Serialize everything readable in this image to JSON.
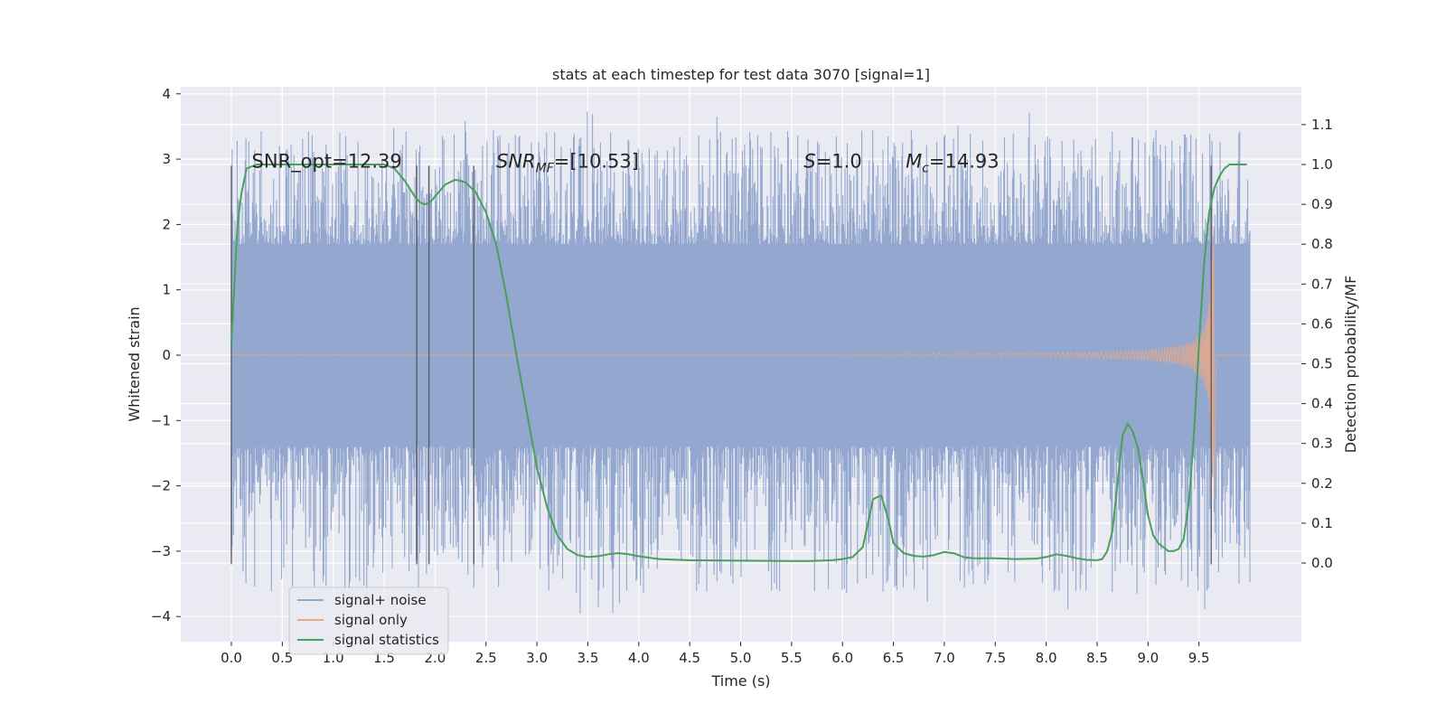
{
  "chart_data": {
    "type": "line",
    "title": "stats at each timestep for test data 3070 [signal=1]",
    "xlabel": "Time (s)",
    "ylabel": "Whitened strain",
    "ylabel_right": "Detection probability/MF",
    "xlim": [
      -0.5,
      10.5
    ],
    "ylim": [
      -4.4,
      4.1
    ],
    "ylim_right": [
      -0.2,
      1.2
    ],
    "x_ticks": [
      0.0,
      0.5,
      1.0,
      1.5,
      2.0,
      2.5,
      3.0,
      3.5,
      4.0,
      4.5,
      5.0,
      5.5,
      6.0,
      6.5,
      7.0,
      7.5,
      8.0,
      8.5,
      9.0,
      9.5
    ],
    "y_ticks": [
      -4,
      -3,
      -2,
      -1,
      0,
      1,
      2,
      3,
      4
    ],
    "y_ticks_right": [
      0.0,
      0.1,
      0.2,
      0.3,
      0.4,
      0.5,
      0.6,
      0.7,
      0.8,
      0.9,
      1.0,
      1.1
    ],
    "grid": true,
    "legend_position": "lower-left",
    "series": [
      {
        "name": "signal+ noise",
        "color": "#94a8cf",
        "description_kind": "noise",
        "t_range": [
          0.0,
          10.0
        ],
        "envelope": {
          "core_low": -1.4,
          "core_high": 1.7,
          "spike_low": -4.05,
          "spike_high": 3.75
        }
      },
      {
        "name": "signal only",
        "color": "#e1a88c",
        "description_kind": "chirp",
        "t_range": [
          0.0,
          9.65
        ],
        "merger_time": 9.65,
        "peak_amplitude": 2.0
      },
      {
        "name": "signal statistics",
        "color": "#4a9f5a",
        "axis": "right",
        "x": [
          0.0,
          0.03,
          0.06,
          0.1,
          0.15,
          0.25,
          0.4,
          0.6,
          0.8,
          1.0,
          1.2,
          1.4,
          1.5,
          1.6,
          1.7,
          1.8,
          1.85,
          1.9,
          1.95,
          2.0,
          2.1,
          2.2,
          2.3,
          2.4,
          2.5,
          2.6,
          2.7,
          2.8,
          2.9,
          3.0,
          3.1,
          3.2,
          3.3,
          3.4,
          3.5,
          3.6,
          3.7,
          3.8,
          3.9,
          4.0,
          4.2,
          4.5,
          5.0,
          5.5,
          5.7,
          5.9,
          6.0,
          6.1,
          6.2,
          6.3,
          6.38,
          6.45,
          6.5,
          6.6,
          6.7,
          6.8,
          6.9,
          7.0,
          7.1,
          7.2,
          7.3,
          7.5,
          7.7,
          7.9,
          8.0,
          8.1,
          8.2,
          8.3,
          8.4,
          8.5,
          8.55,
          8.6,
          8.65,
          8.7,
          8.75,
          8.8,
          8.85,
          8.9,
          8.95,
          9.0,
          9.05,
          9.1,
          9.2,
          9.25,
          9.3,
          9.35,
          9.4,
          9.45,
          9.5,
          9.55,
          9.6,
          9.65,
          9.7,
          9.75,
          9.8,
          9.9,
          9.97
        ],
        "values": [
          0.55,
          0.7,
          0.85,
          0.93,
          0.99,
          1.0,
          1.0,
          1.0,
          1.0,
          1.0,
          1.0,
          1.0,
          1.0,
          0.99,
          0.96,
          0.92,
          0.905,
          0.9,
          0.905,
          0.92,
          0.95,
          0.962,
          0.955,
          0.93,
          0.88,
          0.8,
          0.67,
          0.52,
          0.38,
          0.24,
          0.14,
          0.07,
          0.035,
          0.02,
          0.015,
          0.017,
          0.022,
          0.025,
          0.022,
          0.017,
          0.01,
          0.007,
          0.006,
          0.005,
          0.005,
          0.007,
          0.01,
          0.015,
          0.04,
          0.16,
          0.17,
          0.11,
          0.05,
          0.025,
          0.018,
          0.016,
          0.02,
          0.028,
          0.024,
          0.014,
          0.012,
          0.012,
          0.01,
          0.011,
          0.015,
          0.022,
          0.018,
          0.012,
          0.008,
          0.007,
          0.01,
          0.03,
          0.08,
          0.2,
          0.32,
          0.35,
          0.33,
          0.29,
          0.21,
          0.12,
          0.07,
          0.05,
          0.03,
          0.03,
          0.035,
          0.06,
          0.15,
          0.32,
          0.55,
          0.75,
          0.88,
          0.94,
          0.97,
          0.99,
          1.0,
          1.0,
          1.0
        ]
      }
    ],
    "vlines": {
      "color": "#4d4d55",
      "x": [
        0.0,
        1.82,
        1.94,
        2.38,
        9.62
      ],
      "y_range": [
        -3.2,
        2.9
      ]
    },
    "annotations": [
      {
        "text": "SNR_opt=12.39",
        "x": 0.2,
        "y": 2.87
      },
      {
        "text": "SNR",
        "sub": "MF",
        "after": "=[10.53]",
        "italic": true,
        "x": 2.6,
        "y": 2.87
      },
      {
        "text": "S",
        "after": "=1.0",
        "italic": true,
        "x": 5.62,
        "y": 2.87
      },
      {
        "text": "M",
        "sub": "c",
        "after": "=14.93",
        "italic": true,
        "x": 6.62,
        "y": 2.87
      }
    ]
  }
}
